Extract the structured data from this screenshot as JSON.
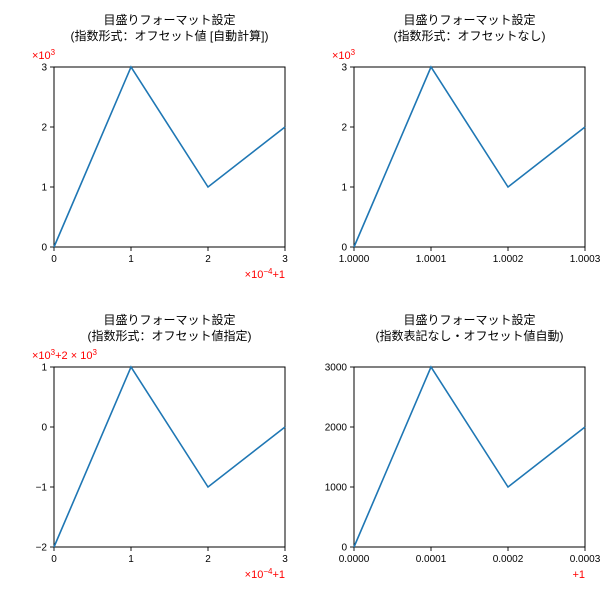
{
  "global": {
    "line_color": "#1f77b4",
    "axis_color": "#000000",
    "offset_color": "#ff0000",
    "background_color": "#ffffff",
    "title_fontsize": 12,
    "tick_fontsize": 10,
    "line_width": 1.6
  },
  "panels": [
    {
      "type": "line",
      "title_line1": "目盛りフォーマット設定",
      "title_line2": "(指数形式：オフセット値 [自動計算])",
      "x_values": [
        0,
        1,
        2,
        3
      ],
      "y_values": [
        0,
        3,
        1,
        2
      ],
      "xlim": [
        0,
        3
      ],
      "ylim": [
        0,
        3
      ],
      "xticks": [
        0,
        1,
        2,
        3
      ],
      "xtick_labels": [
        "0",
        "1",
        "2",
        "3"
      ],
      "yticks": [
        0,
        1,
        2,
        3
      ],
      "ytick_labels": [
        "0",
        "1",
        "2",
        "3"
      ],
      "y_multiplier_html": "×10<tspan baseline-shift=\"4\" font-size=\"8\">3</tspan>",
      "x_offset_html": "×10<tspan baseline-shift=\"4\" font-size=\"8\">−4</tspan>+1"
    },
    {
      "type": "line",
      "title_line1": "目盛りフォーマット設定",
      "title_line2": "(指数形式：オフセットなし)",
      "x_values": [
        0,
        1,
        2,
        3
      ],
      "y_values": [
        0,
        3,
        1,
        2
      ],
      "xlim": [
        0,
        3
      ],
      "ylim": [
        0,
        3
      ],
      "xticks": [
        0,
        1,
        2,
        3
      ],
      "xtick_labels": [
        "1.0000",
        "1.0001",
        "1.0002",
        "1.0003"
      ],
      "yticks": [
        0,
        1,
        2,
        3
      ],
      "ytick_labels": [
        "0",
        "1",
        "2",
        "3"
      ],
      "y_multiplier_html": "×10<tspan baseline-shift=\"4\" font-size=\"8\">3</tspan>",
      "x_offset_html": null
    },
    {
      "type": "line",
      "title_line1": "目盛りフォーマット設定",
      "title_line2": "(指数形式：オフセット値指定)",
      "x_values": [
        0,
        1,
        2,
        3
      ],
      "y_values": [
        -2,
        1,
        -1,
        0
      ],
      "xlim": [
        0,
        3
      ],
      "ylim": [
        -2,
        1
      ],
      "xticks": [
        0,
        1,
        2,
        3
      ],
      "xtick_labels": [
        "0",
        "1",
        "2",
        "3"
      ],
      "yticks": [
        -2,
        -1,
        0,
        1
      ],
      "ytick_labels": [
        "−2",
        "−1",
        "0",
        "1"
      ],
      "y_multiplier_html": "×10<tspan baseline-shift=\"4\" font-size=\"8\">3</tspan>+2 × 10<tspan baseline-shift=\"4\" font-size=\"8\">3</tspan>",
      "x_offset_html": "×10<tspan baseline-shift=\"4\" font-size=\"8\">−4</tspan>+1"
    },
    {
      "type": "line",
      "title_line1": "目盛りフォーマット設定",
      "title_line2": "(指数表記なし・オフセット値自動)",
      "x_values": [
        0,
        1,
        2,
        3
      ],
      "y_values": [
        0,
        3,
        1,
        2
      ],
      "xlim": [
        0,
        3
      ],
      "ylim": [
        0,
        3
      ],
      "xticks": [
        0,
        1,
        2,
        3
      ],
      "xtick_labels": [
        "0.0000",
        "0.0001",
        "0.0002",
        "0.0003"
      ],
      "yticks": [
        0,
        1,
        2,
        3
      ],
      "ytick_labels": [
        "0",
        "1000",
        "2000",
        "3000"
      ],
      "y_multiplier_html": null,
      "x_offset_html": "+1"
    }
  ]
}
